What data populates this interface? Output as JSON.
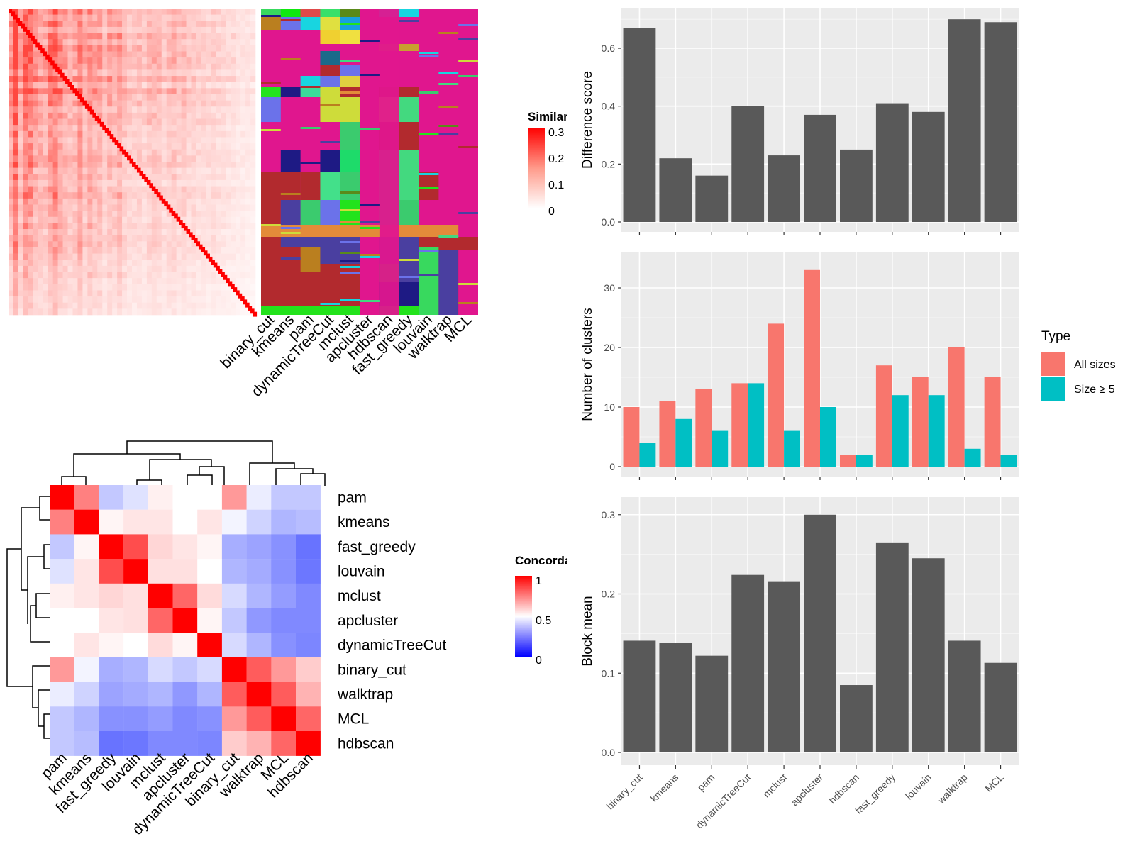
{
  "methods": [
    "binary_cut",
    "kmeans",
    "pam",
    "dynamicTreeCut",
    "mclust",
    "apcluster",
    "hdbscan",
    "fast_greedy",
    "louvain",
    "walktrap",
    "MCL"
  ],
  "similarity_heatmap": {
    "legend_title": "Similarity",
    "legend_ticks": [
      "0",
      "0.1",
      "0.2",
      "0.3"
    ],
    "column_labels": [
      "binary_cut",
      "kmeans",
      "pam",
      "dynamicTreeCut",
      "mclust",
      "apcluster",
      "hdbscan",
      "fast_greedy",
      "louvain",
      "walktrap",
      "MCL"
    ]
  },
  "concordance_heatmap": {
    "legend_title": "Concordance",
    "legend_ticks": [
      "0",
      "0.5",
      "1"
    ],
    "order": [
      "pam",
      "kmeans",
      "fast_greedy",
      "louvain",
      "mclust",
      "apcluster",
      "dynamicTreeCut",
      "binary_cut",
      "walktrap",
      "MCL",
      "hdbscan"
    ],
    "matrix": [
      [
        1.0,
        0.75,
        0.35,
        0.42,
        0.53,
        0.5,
        0.5,
        0.7,
        0.45,
        0.35,
        0.35
      ],
      [
        0.75,
        1.0,
        0.52,
        0.55,
        0.55,
        0.5,
        0.55,
        0.47,
        0.38,
        0.3,
        0.32
      ],
      [
        0.35,
        0.52,
        1.0,
        0.85,
        0.58,
        0.55,
        0.52,
        0.28,
        0.25,
        0.2,
        0.12
      ],
      [
        0.42,
        0.55,
        0.85,
        1.0,
        0.56,
        0.56,
        0.5,
        0.3,
        0.27,
        0.2,
        0.13
      ],
      [
        0.53,
        0.55,
        0.58,
        0.56,
        1.0,
        0.8,
        0.57,
        0.4,
        0.3,
        0.23,
        0.18
      ],
      [
        0.5,
        0.5,
        0.55,
        0.56,
        0.8,
        1.0,
        0.52,
        0.35,
        0.22,
        0.18,
        0.18
      ],
      [
        0.5,
        0.55,
        0.52,
        0.5,
        0.57,
        0.52,
        1.0,
        0.4,
        0.3,
        0.2,
        0.17
      ],
      [
        0.7,
        0.47,
        0.28,
        0.3,
        0.4,
        0.35,
        0.4,
        1.0,
        0.82,
        0.7,
        0.6
      ],
      [
        0.45,
        0.38,
        0.25,
        0.27,
        0.3,
        0.22,
        0.3,
        0.82,
        1.0,
        0.82,
        0.65
      ],
      [
        0.35,
        0.3,
        0.2,
        0.2,
        0.23,
        0.18,
        0.2,
        0.7,
        0.82,
        1.0,
        0.8
      ],
      [
        0.35,
        0.32,
        0.12,
        0.13,
        0.18,
        0.18,
        0.17,
        0.6,
        0.65,
        0.8,
        1.0
      ]
    ]
  },
  "chart_data": [
    {
      "type": "bar",
      "ylabel": "Difference score",
      "categories": [
        "binary_cut",
        "kmeans",
        "pam",
        "dynamicTreeCut",
        "mclust",
        "apcluster",
        "hdbscan",
        "fast_greedy",
        "louvain",
        "walktrap",
        "MCL"
      ],
      "values": [
        0.67,
        0.22,
        0.16,
        0.4,
        0.23,
        0.37,
        0.25,
        0.41,
        0.38,
        0.7,
        0.69
      ],
      "ylim": [
        0,
        0.72
      ],
      "yticks": [
        "0.0",
        "0.2",
        "0.4",
        "0.6"
      ],
      "color": "#595959"
    },
    {
      "type": "bar",
      "ylabel": "Number of clusters",
      "categories": [
        "binary_cut",
        "kmeans",
        "pam",
        "dynamicTreeCut",
        "mclust",
        "apcluster",
        "hdbscan",
        "fast_greedy",
        "louvain",
        "walktrap",
        "MCL"
      ],
      "series": [
        {
          "name": "All sizes",
          "values": [
            10,
            11,
            13,
            14,
            24,
            33,
            2,
            17,
            15,
            20,
            15
          ],
          "color": "#F8766D"
        },
        {
          "name": "Size ≥ 5",
          "values": [
            4,
            8,
            6,
            14,
            6,
            10,
            2,
            12,
            12,
            3,
            2
          ],
          "color": "#00BFC4"
        }
      ],
      "ylim": [
        0,
        35
      ],
      "yticks": [
        "0",
        "10",
        "20",
        "30"
      ],
      "legend_title": "Type"
    },
    {
      "type": "bar",
      "ylabel": "Block mean",
      "categories": [
        "binary_cut",
        "kmeans",
        "pam",
        "dynamicTreeCut",
        "mclust",
        "apcluster",
        "hdbscan",
        "fast_greedy",
        "louvain",
        "walktrap",
        "MCL"
      ],
      "values": [
        0.141,
        0.138,
        0.122,
        0.224,
        0.216,
        0.3,
        0.085,
        0.265,
        0.245,
        0.141,
        0.113
      ],
      "ylim": [
        0,
        0.315
      ],
      "yticks": [
        "0.0",
        "0.1",
        "0.2",
        "0.3"
      ],
      "color": "#595959"
    }
  ]
}
